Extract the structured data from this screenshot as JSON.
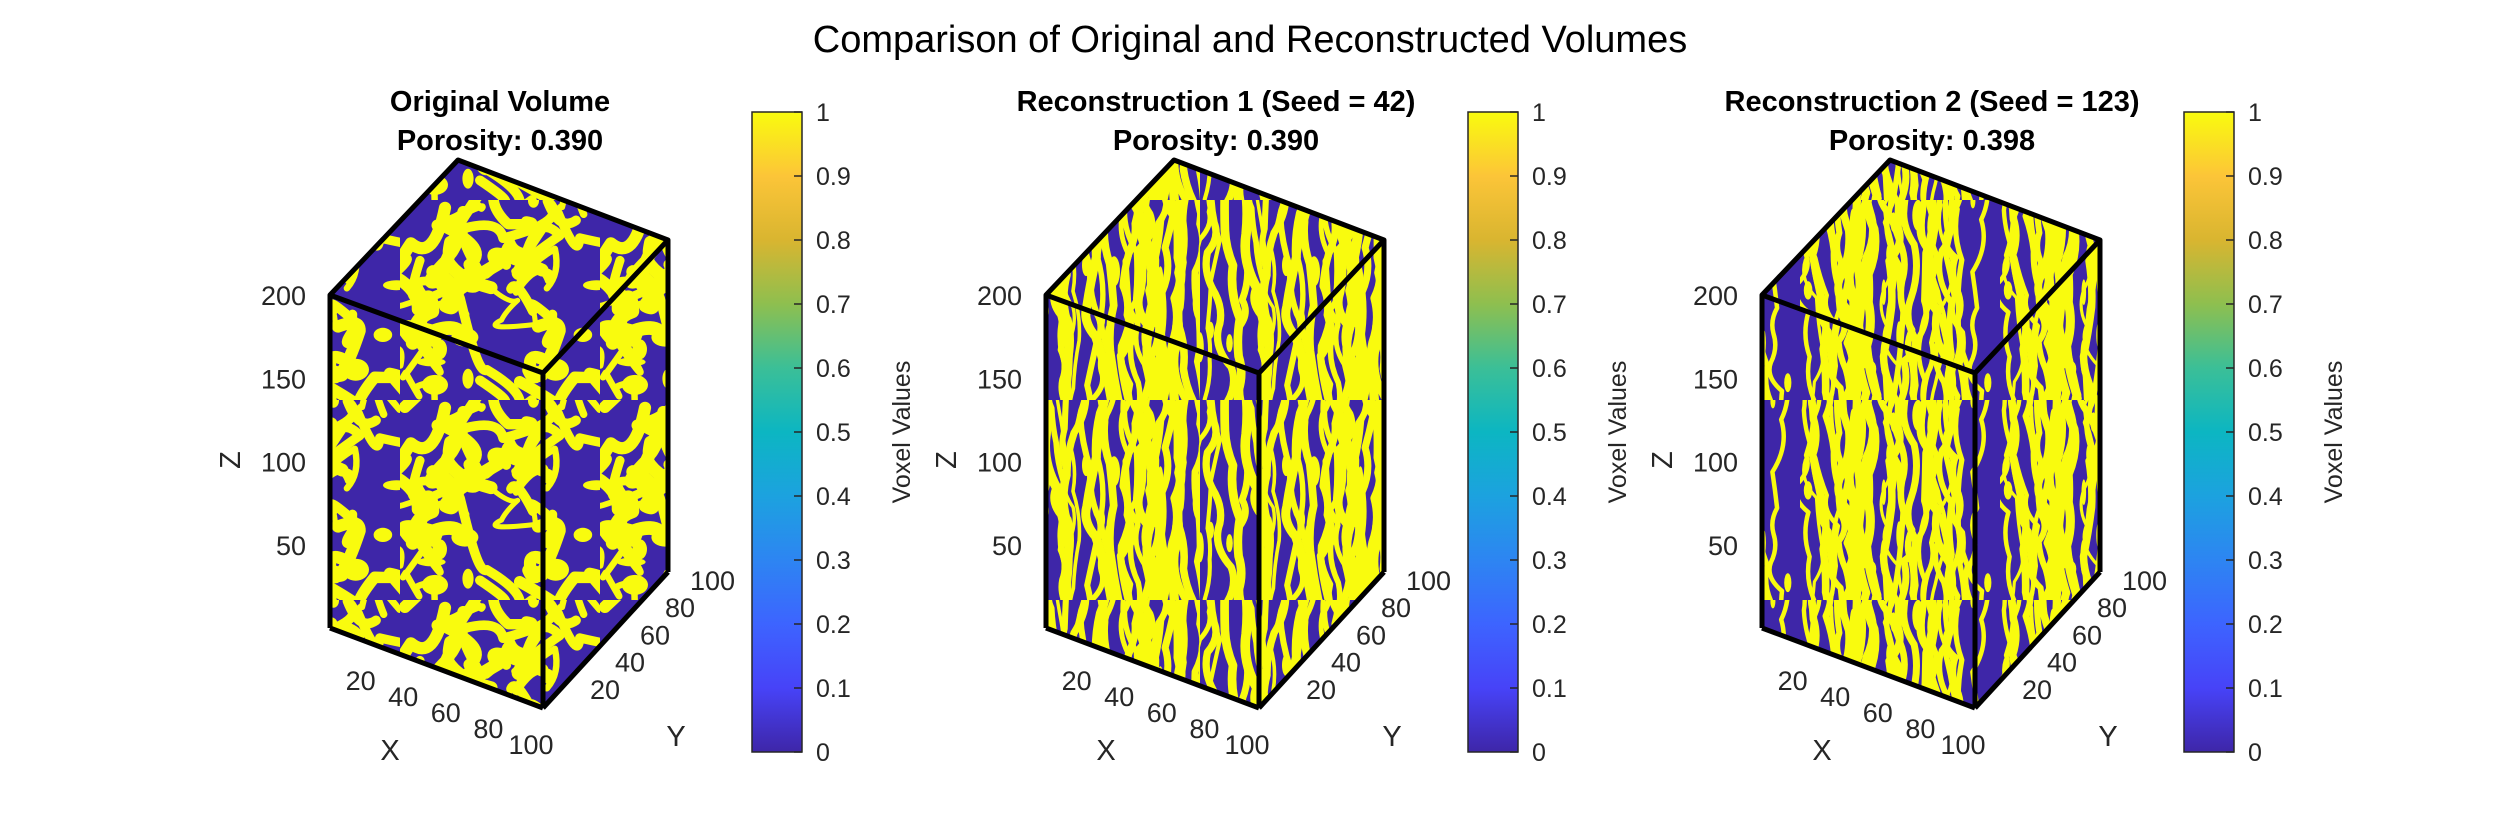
{
  "figure": {
    "suptitle": "Comparison of Original and Reconstructed Volumes"
  },
  "colors": {
    "pore": "#3e26a8",
    "solid": "#f9fb0e",
    "edge": "#000000",
    "axis_text": "#262626"
  },
  "chart_data": [
    {
      "type": "heatmap",
      "title": "Original Volume",
      "subtitle": "Porosity: 0.390",
      "porosity": 0.39,
      "xlabel": "X",
      "ylabel": "Y",
      "zlabel": "Z",
      "x_ticks": [
        "20",
        "40",
        "60",
        "80",
        "100"
      ],
      "y_ticks": [
        "20",
        "40",
        "60",
        "80",
        "100"
      ],
      "z_ticks": [
        "50",
        "100",
        "150",
        "200"
      ],
      "xlim": [
        0,
        100
      ],
      "ylim": [
        0,
        100
      ],
      "zlim": [
        0,
        200
      ],
      "colorbar_label": "Voxel Values",
      "colorbar_ticks": [
        "0",
        "0.1",
        "0.2",
        "0.3",
        "0.4",
        "0.5",
        "0.6",
        "0.7",
        "0.8",
        "0.9",
        "1"
      ],
      "texture": "network"
    },
    {
      "type": "heatmap",
      "title": "Reconstruction 1 (Seed = 42)",
      "subtitle": "Porosity: 0.390",
      "porosity": 0.39,
      "xlabel": "X",
      "ylabel": "Y",
      "zlabel": "Z",
      "x_ticks": [
        "20",
        "40",
        "60",
        "80",
        "100"
      ],
      "y_ticks": [
        "20",
        "40",
        "60",
        "80",
        "100"
      ],
      "z_ticks": [
        "50",
        "100",
        "150",
        "200"
      ],
      "xlim": [
        0,
        100
      ],
      "ylim": [
        0,
        100
      ],
      "zlim": [
        0,
        200
      ],
      "colorbar_label": "Voxel Values",
      "colorbar_ticks": [
        "0",
        "0.1",
        "0.2",
        "0.3",
        "0.4",
        "0.5",
        "0.6",
        "0.7",
        "0.8",
        "0.9",
        "1"
      ],
      "texture": "streaks",
      "seed": 42
    },
    {
      "type": "heatmap",
      "title": "Reconstruction 2 (Seed = 123)",
      "subtitle": "Porosity: 0.398",
      "porosity": 0.398,
      "xlabel": "X",
      "ylabel": "Y",
      "zlabel": "Z",
      "x_ticks": [
        "20",
        "40",
        "60",
        "80",
        "100"
      ],
      "y_ticks": [
        "20",
        "40",
        "60",
        "80",
        "100"
      ],
      "z_ticks": [
        "50",
        "100",
        "150",
        "200"
      ],
      "xlim": [
        0,
        100
      ],
      "ylim": [
        0,
        100
      ],
      "zlim": [
        0,
        200
      ],
      "colorbar_label": "Voxel Values",
      "colorbar_ticks": [
        "0",
        "0.1",
        "0.2",
        "0.3",
        "0.4",
        "0.5",
        "0.6",
        "0.7",
        "0.8",
        "0.9",
        "1"
      ],
      "texture": "streaks",
      "seed": 123
    }
  ]
}
